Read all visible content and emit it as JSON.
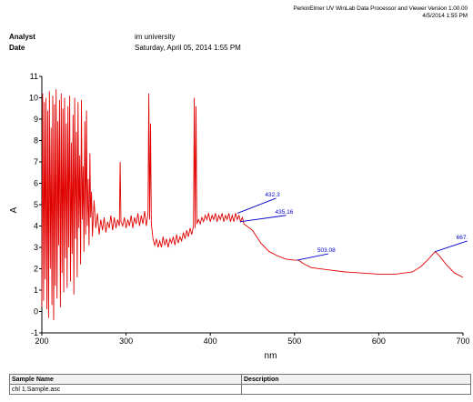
{
  "header": {
    "software": "PerkinElmer UV WinLab Data Processor and Viewer Version 1.00.00",
    "datetime": "4/5/2014 1:55 PM"
  },
  "meta": {
    "analyst_label": "Analyst",
    "analyst_value": "im university",
    "date_label": "Date",
    "date_value": "Saturday, April 05, 2014 1:55 PM"
  },
  "chart_data": {
    "type": "line",
    "xlabel": "nm",
    "ylabel": "A",
    "xlim": [
      200,
      700
    ],
    "ylim": [
      -1,
      11
    ],
    "x_ticks": [
      "200",
      "300",
      "400",
      "500",
      "600",
      "700"
    ],
    "y_ticks": [
      "-1",
      "0",
      "1",
      "2",
      "3",
      "4",
      "5",
      "6",
      "7",
      "8",
      "9",
      "10",
      "11"
    ],
    "grid": false,
    "series_color": "#e00000",
    "annotation_color": "#0000cc",
    "series": [
      {
        "values_smooth": [
          [
            440,
            4.1
          ],
          [
            450,
            3.8
          ],
          [
            460,
            3.2
          ],
          [
            470,
            2.8
          ],
          [
            480,
            2.6
          ],
          [
            490,
            2.45
          ],
          [
            500,
            2.4
          ],
          [
            505,
            2.4
          ],
          [
            510,
            2.25
          ],
          [
            520,
            2.05
          ],
          [
            540,
            1.95
          ],
          [
            560,
            1.85
          ],
          [
            580,
            1.8
          ],
          [
            600,
            1.75
          ],
          [
            620,
            1.75
          ],
          [
            640,
            1.85
          ],
          [
            650,
            2.1
          ],
          [
            660,
            2.5
          ],
          [
            667,
            2.8
          ],
          [
            672,
            2.6
          ],
          [
            680,
            2.2
          ],
          [
            690,
            1.8
          ],
          [
            700,
            1.6
          ]
        ],
        "values_noisy": [
          [
            200,
            0.2
          ],
          [
            201,
            10.2
          ],
          [
            202,
            0.5
          ],
          [
            203,
            9.8
          ],
          [
            204,
            1.5
          ],
          [
            205,
            10.0
          ],
          [
            206,
            0.1
          ],
          [
            207,
            9.4
          ],
          [
            208,
            -0.3
          ],
          [
            209,
            10.3
          ],
          [
            210,
            2.0
          ],
          [
            211,
            8.6
          ],
          [
            212,
            0.3
          ],
          [
            213,
            10.1
          ],
          [
            214,
            -0.4
          ],
          [
            215,
            9.7
          ],
          [
            216,
            1.2
          ],
          [
            217,
            10.4
          ],
          [
            218,
            0.6
          ],
          [
            219,
            8.9
          ],
          [
            220,
            3.1
          ],
          [
            221,
            9.9
          ],
          [
            222,
            0.2
          ],
          [
            223,
            10.2
          ],
          [
            224,
            1.8
          ],
          [
            225,
            9.5
          ],
          [
            226,
            0.9
          ],
          [
            227,
            10.0
          ],
          [
            228,
            2.5
          ],
          [
            229,
            8.8
          ],
          [
            230,
            1.1
          ],
          [
            231,
            9.6
          ],
          [
            232,
            3.0
          ],
          [
            233,
            10.1
          ],
          [
            234,
            1.4
          ],
          [
            235,
            7.9
          ],
          [
            236,
            2.7
          ],
          [
            237,
            9.2
          ],
          [
            238,
            0.8
          ],
          [
            239,
            10.0
          ],
          [
            240,
            3.4
          ],
          [
            241,
            8.4
          ],
          [
            242,
            1.6
          ],
          [
            243,
            9.8
          ],
          [
            244,
            3.9
          ],
          [
            245,
            7.3
          ],
          [
            246,
            2.2
          ],
          [
            247,
            9.9
          ],
          [
            248,
            4.3
          ],
          [
            249,
            6.8
          ],
          [
            250,
            2.8
          ],
          [
            251,
            8.9
          ],
          [
            252,
            3.6
          ],
          [
            253,
            9.4
          ],
          [
            254,
            4.0
          ],
          [
            255,
            6.2
          ],
          [
            256,
            3.1
          ],
          [
            257,
            7.4
          ],
          [
            258,
            4.4
          ],
          [
            259,
            5.6
          ],
          [
            260,
            3.5
          ],
          [
            262,
            5.2
          ],
          [
            264,
            3.9
          ],
          [
            266,
            4.6
          ],
          [
            268,
            3.6
          ],
          [
            270,
            4.3
          ],
          [
            272,
            3.8
          ],
          [
            274,
            4.4
          ],
          [
            276,
            3.7
          ],
          [
            278,
            4.2
          ],
          [
            280,
            3.9
          ],
          [
            282,
            4.5
          ],
          [
            284,
            3.8
          ],
          [
            286,
            4.4
          ],
          [
            288,
            3.9
          ],
          [
            290,
            4.3
          ],
          [
            292,
            4.0
          ],
          [
            293,
            7.0
          ],
          [
            294,
            4.2
          ],
          [
            296,
            4.0
          ],
          [
            298,
            4.4
          ],
          [
            300,
            3.9
          ],
          [
            302,
            4.3
          ],
          [
            304,
            4.0
          ],
          [
            306,
            4.5
          ],
          [
            308,
            3.9
          ],
          [
            310,
            4.4
          ],
          [
            312,
            4.1
          ],
          [
            314,
            4.6
          ],
          [
            316,
            4.0
          ],
          [
            318,
            4.5
          ],
          [
            320,
            4.1
          ],
          [
            322,
            4.7
          ],
          [
            324,
            4.0
          ],
          [
            326,
            4.6
          ],
          [
            327,
            10.2
          ],
          [
            328,
            4.3
          ],
          [
            329,
            8.8
          ],
          [
            330,
            4.1
          ],
          [
            332,
            3.4
          ],
          [
            334,
            3.1
          ],
          [
            336,
            3.4
          ],
          [
            338,
            3.0
          ],
          [
            340,
            3.3
          ],
          [
            342,
            3.0
          ],
          [
            344,
            3.5
          ],
          [
            346,
            3.1
          ],
          [
            348,
            3.4
          ],
          [
            350,
            3.0
          ],
          [
            352,
            3.4
          ],
          [
            354,
            3.2
          ],
          [
            356,
            3.5
          ],
          [
            358,
            3.1
          ],
          [
            360,
            3.6
          ],
          [
            362,
            3.2
          ],
          [
            364,
            3.5
          ],
          [
            366,
            3.3
          ],
          [
            368,
            3.7
          ],
          [
            370,
            3.4
          ],
          [
            372,
            3.8
          ],
          [
            374,
            3.5
          ],
          [
            376,
            3.9
          ],
          [
            378,
            3.6
          ],
          [
            380,
            4.0
          ],
          [
            381,
            10.0
          ],
          [
            382,
            3.9
          ],
          [
            383,
            9.6
          ],
          [
            384,
            4.1
          ],
          [
            386,
            4.3
          ],
          [
            388,
            4.1
          ],
          [
            390,
            4.4
          ],
          [
            392,
            4.2
          ],
          [
            394,
            4.5
          ],
          [
            396,
            4.3
          ],
          [
            398,
            4.6
          ],
          [
            400,
            4.2
          ],
          [
            402,
            4.5
          ],
          [
            404,
            4.3
          ],
          [
            406,
            4.6
          ],
          [
            408,
            4.2
          ],
          [
            410,
            4.5
          ],
          [
            412,
            4.3
          ],
          [
            414,
            4.6
          ],
          [
            416,
            4.2
          ],
          [
            418,
            4.5
          ],
          [
            420,
            4.3
          ],
          [
            422,
            4.6
          ],
          [
            424,
            4.2
          ],
          [
            426,
            4.5
          ],
          [
            428,
            4.2
          ],
          [
            430,
            4.6
          ],
          [
            432,
            4.3
          ],
          [
            434,
            4.5
          ],
          [
            436,
            4.2
          ],
          [
            438,
            4.4
          ],
          [
            440,
            4.1
          ]
        ]
      }
    ],
    "annotations": [
      {
        "label": "432.3",
        "x": 432.3,
        "y": 4.6,
        "tx": 478,
        "ty": 5.3
      },
      {
        "label": "435.16",
        "x": 435.16,
        "y": 4.2,
        "tx": 490,
        "ty": 4.5
      },
      {
        "label": "503.08",
        "x": 503.08,
        "y": 2.4,
        "tx": 540,
        "ty": 2.7
      },
      {
        "label": "667.",
        "x": 667,
        "y": 2.8,
        "tx": 705,
        "ty": 3.3
      }
    ]
  },
  "table": {
    "headers": [
      "Sample Name",
      "Description"
    ],
    "rows": [
      [
        "chl 1.Sample.asc",
        ""
      ]
    ]
  }
}
